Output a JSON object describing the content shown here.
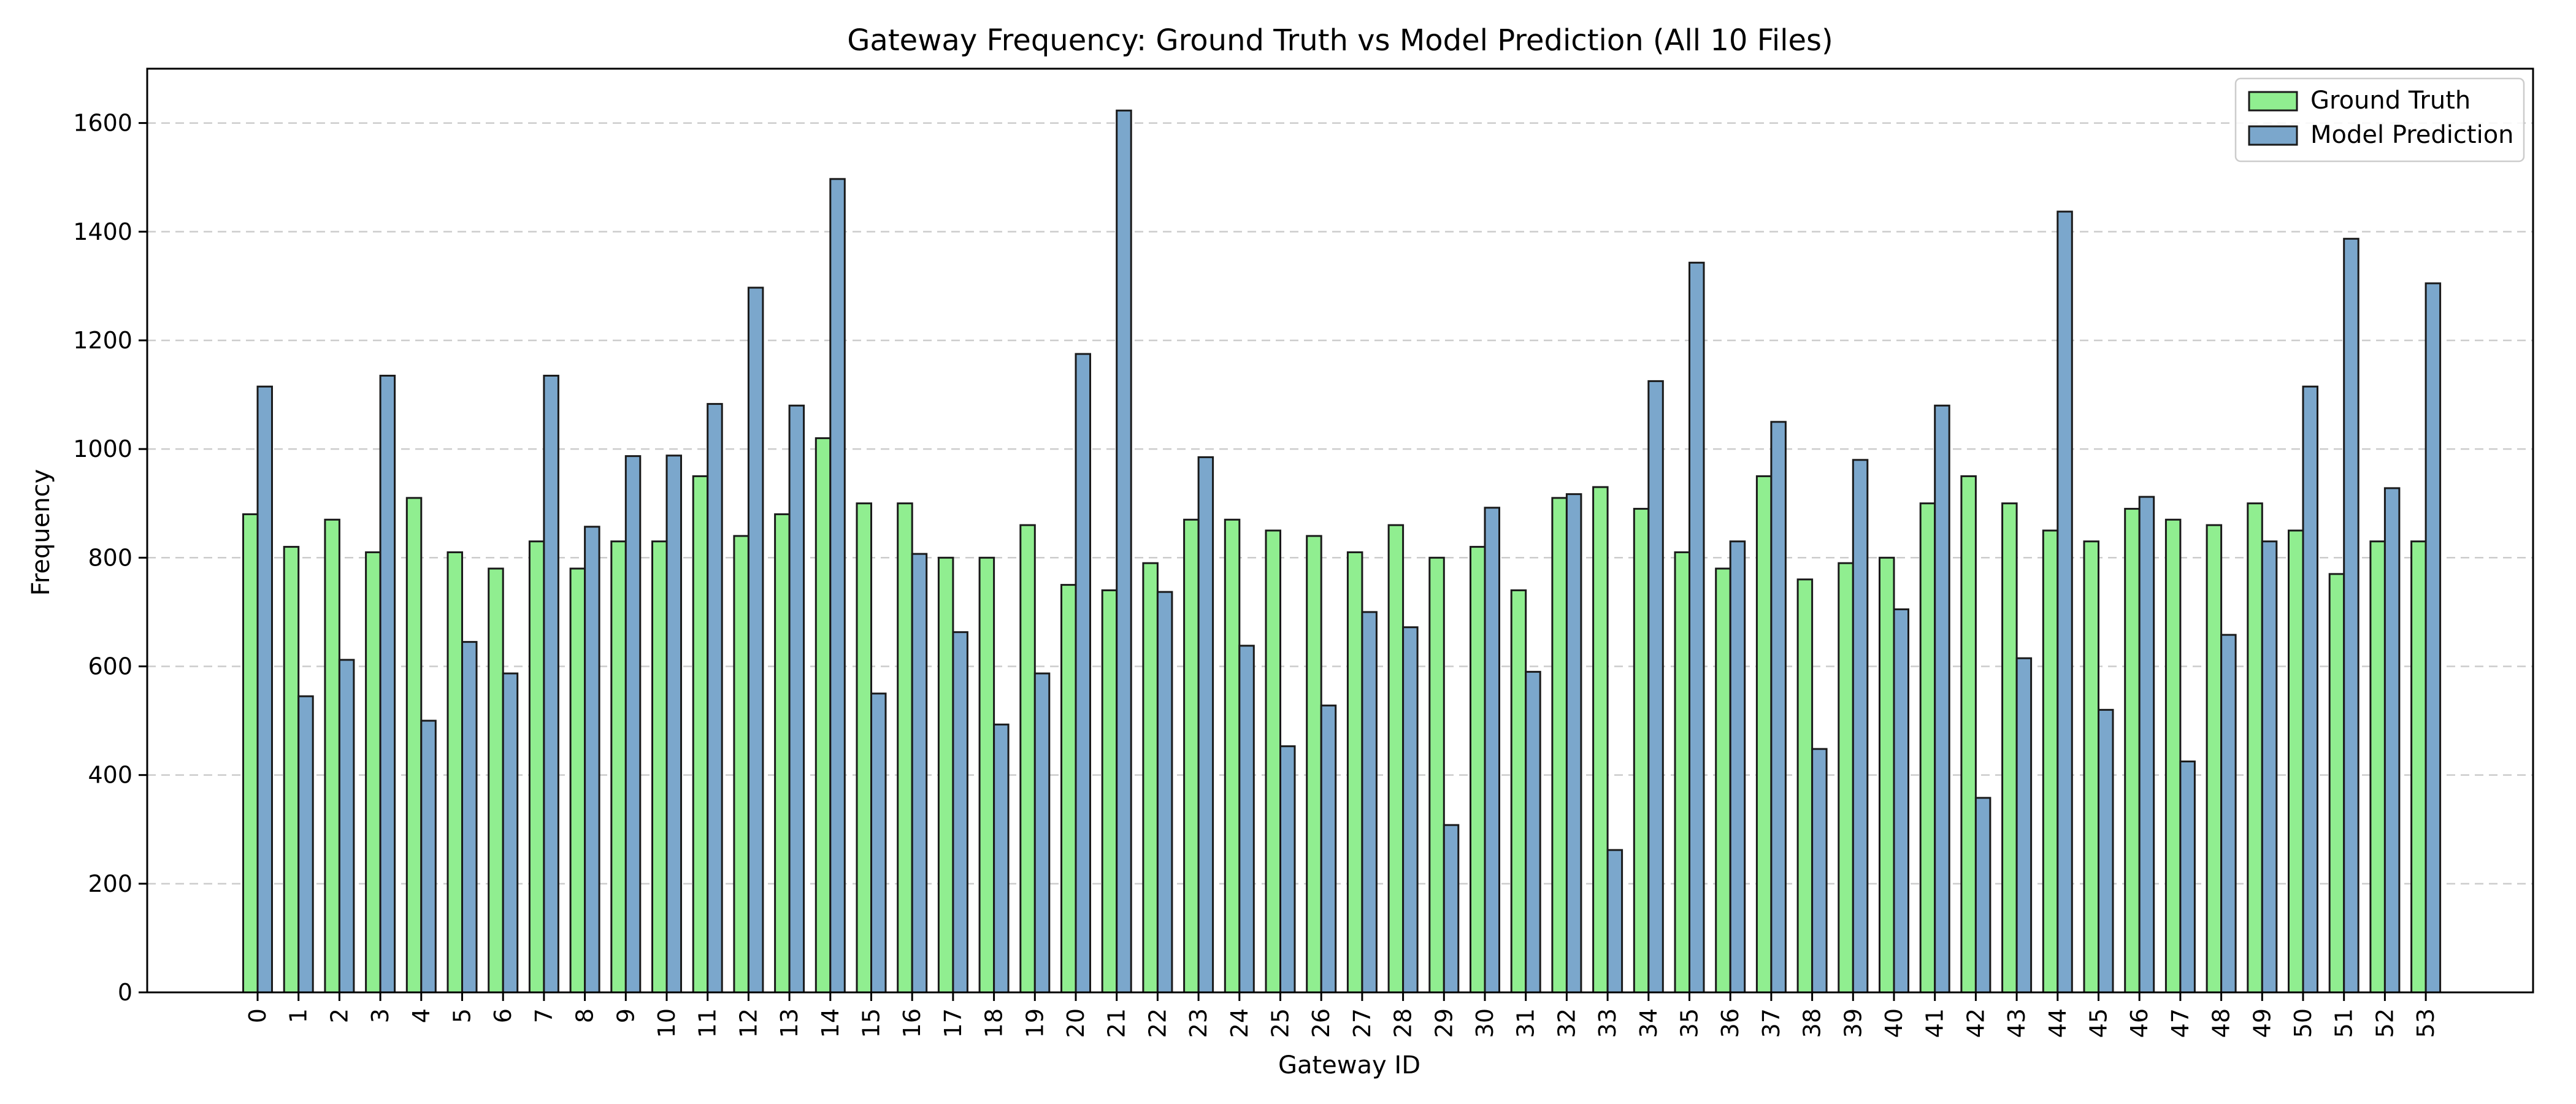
{
  "chart_data": {
    "type": "bar",
    "title": "Gateway Frequency: Ground Truth vs Model Prediction (All 10 Files)",
    "xlabel": "Gateway ID",
    "ylabel": "Frequency",
    "ylim": [
      0,
      1700
    ],
    "yticks": [
      0,
      200,
      400,
      600,
      800,
      1000,
      1200,
      1400,
      1600
    ],
    "grid": "y-dashed",
    "legend_position": "top-right",
    "categories": [
      "0",
      "1",
      "2",
      "3",
      "4",
      "5",
      "6",
      "7",
      "8",
      "9",
      "10",
      "11",
      "12",
      "13",
      "14",
      "15",
      "16",
      "17",
      "18",
      "19",
      "20",
      "21",
      "22",
      "23",
      "24",
      "25",
      "26",
      "27",
      "28",
      "29",
      "30",
      "31",
      "32",
      "33",
      "34",
      "35",
      "36",
      "37",
      "38",
      "39",
      "40",
      "41",
      "42",
      "43",
      "44",
      "45",
      "46",
      "47",
      "48",
      "49",
      "50",
      "51",
      "52",
      "53"
    ],
    "series": [
      {
        "name": "Ground Truth",
        "color": "#90EE90",
        "values": [
          880,
          820,
          870,
          810,
          910,
          810,
          780,
          830,
          780,
          830,
          830,
          950,
          840,
          880,
          1020,
          900,
          900,
          800,
          800,
          860,
          750,
          740,
          790,
          870,
          870,
          850,
          840,
          810,
          860,
          800,
          820,
          740,
          910,
          930,
          890,
          810,
          780,
          950,
          760,
          790,
          800,
          900,
          950,
          900,
          850,
          830,
          890,
          870,
          860,
          900,
          850,
          770,
          830,
          830
        ]
      },
      {
        "name": "Model Prediction",
        "color": "#7BA7CC",
        "values": [
          1115,
          545,
          612,
          1135,
          500,
          645,
          587,
          1135,
          857,
          987,
          988,
          1083,
          1297,
          1080,
          1497,
          550,
          807,
          663,
          493,
          587,
          1175,
          1623,
          737,
          985,
          638,
          453,
          528,
          700,
          672,
          308,
          892,
          590,
          917,
          262,
          1125,
          1343,
          830,
          1050,
          448,
          980,
          705,
          1080,
          358,
          615,
          1437,
          520,
          912,
          425,
          658,
          830,
          1115,
          1387,
          928,
          1305
        ]
      }
    ]
  }
}
